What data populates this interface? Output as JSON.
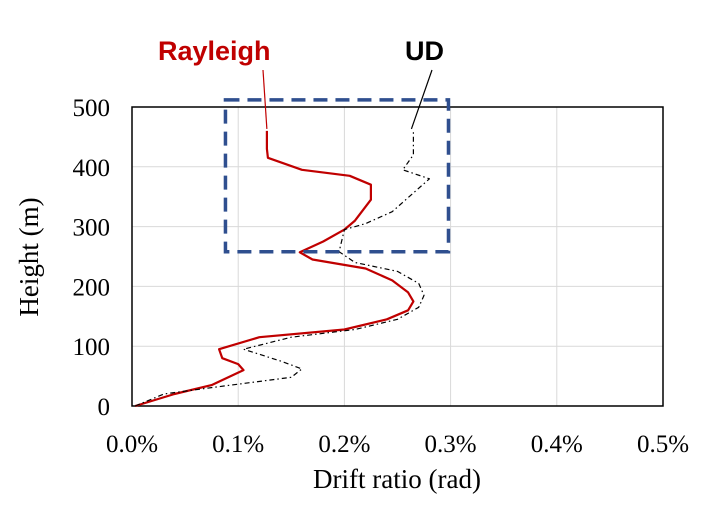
{
  "chart_data": {
    "type": "line",
    "orientation": "vertical-profile",
    "xlabel": "Drift ratio (rad)",
    "ylabel": "Height (m)",
    "xlim": [
      0,
      0.005
    ],
    "ylim": [
      0,
      500
    ],
    "x_ticks": [
      "0.0%",
      "0.1%",
      "0.2%",
      "0.3%",
      "0.4%",
      "0.5%"
    ],
    "y_ticks": [
      "0",
      "100",
      "200",
      "300",
      "400",
      "500"
    ],
    "grid": true,
    "series": [
      {
        "name": "Rayleigh",
        "color": "#c00000",
        "style": "solid",
        "points": [
          [
            3e-05,
            0
          ],
          [
            0.0004,
            20
          ],
          [
            0.00075,
            35
          ],
          [
            0.00105,
            60
          ],
          [
            0.001,
            70
          ],
          [
            0.00085,
            80
          ],
          [
            0.00082,
            95
          ],
          [
            0.0012,
            115
          ],
          [
            0.002,
            128
          ],
          [
            0.0024,
            145
          ],
          [
            0.0026,
            160
          ],
          [
            0.00265,
            175
          ],
          [
            0.0026,
            190
          ],
          [
            0.00245,
            210
          ],
          [
            0.0022,
            230
          ],
          [
            0.0017,
            245
          ],
          [
            0.00158,
            257
          ],
          [
            0.0018,
            275
          ],
          [
            0.002,
            295
          ],
          [
            0.0021,
            310
          ],
          [
            0.00225,
            345
          ],
          [
            0.00225,
            370
          ],
          [
            0.00205,
            385
          ],
          [
            0.0016,
            395
          ],
          [
            0.00128,
            415
          ],
          [
            0.00127,
            430
          ],
          [
            0.00127,
            460
          ]
        ]
      },
      {
        "name": "UD",
        "color": "#000000",
        "style": "dashed",
        "points": [
          [
            3e-05,
            0
          ],
          [
            0.0003,
            20
          ],
          [
            0.0008,
            32
          ],
          [
            0.0015,
            48
          ],
          [
            0.0016,
            62
          ],
          [
            0.0014,
            75
          ],
          [
            0.00105,
            95
          ],
          [
            0.0015,
            115
          ],
          [
            0.0021,
            128
          ],
          [
            0.0025,
            145
          ],
          [
            0.0027,
            165
          ],
          [
            0.00275,
            185
          ],
          [
            0.0027,
            205
          ],
          [
            0.0025,
            225
          ],
          [
            0.0021,
            240
          ],
          [
            0.00195,
            258
          ],
          [
            0.002,
            295
          ],
          [
            0.0022,
            305
          ],
          [
            0.00245,
            325
          ],
          [
            0.0028,
            380
          ],
          [
            0.00255,
            395
          ],
          [
            0.00265,
            420
          ],
          [
            0.00265,
            460
          ]
        ]
      }
    ],
    "annotations": {
      "rayleigh_label": "Rayleigh",
      "ud_label": "UD",
      "highlight_box": {
        "x0": 0.00088,
        "x1": 0.00298,
        "y0": 258,
        "y1": 512,
        "color": "#2f4f8f"
      }
    }
  }
}
